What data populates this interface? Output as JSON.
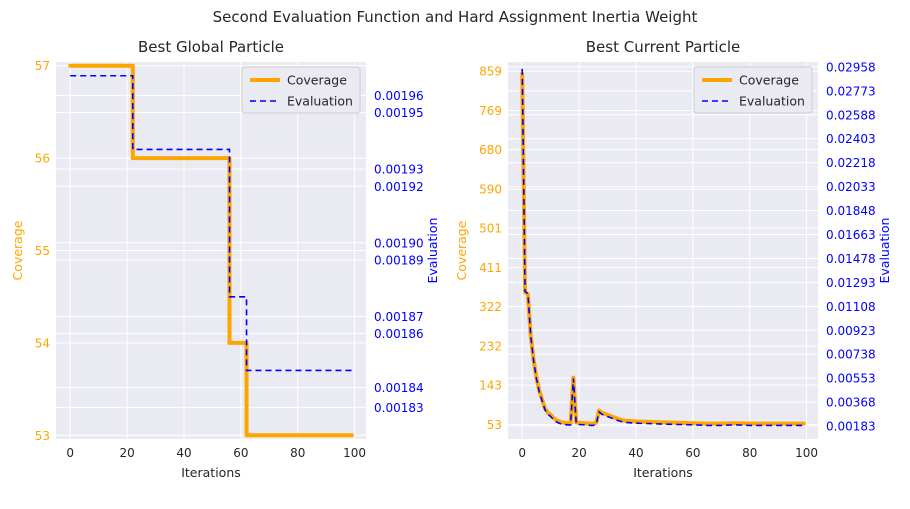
{
  "figure": {
    "title": "Second Evaluation Function and Hard Assignment Inertia Weight",
    "colors": {
      "coverage": "#FFA500",
      "evaluation": "#0000FF",
      "panel_bg": "#EAEAF2",
      "grid": "#FFFFFF",
      "text": "#262626"
    }
  },
  "chart_data": [
    {
      "type": "line",
      "title": "Best Global Particle",
      "xlabel": "Iterations",
      "ylabel": "Coverage",
      "y2label": "Evaluation",
      "xlim": [
        -5,
        104
      ],
      "ylim": [
        52.96,
        57.04
      ],
      "y2lim": [
        0.0018211,
        0.0019746
      ],
      "xticks": [
        0,
        20,
        40,
        60,
        80,
        100
      ],
      "yticks": [
        57,
        56,
        55,
        54,
        53
      ],
      "y2ticks": [
        "0.00196",
        "0.00195",
        "0.00193",
        "0.00192",
        "0.00190",
        "0.00189",
        "0.00187",
        "0.00186",
        "0.00184",
        "0.00183"
      ],
      "y2tick_values": [
        0.001961,
        0.001954,
        0.001931,
        0.001924,
        0.001901,
        0.001894,
        0.001871,
        0.001864,
        0.001842,
        0.001834
      ],
      "legend": {
        "location": "upper right",
        "entries": [
          "Coverage",
          "Evaluation"
        ]
      },
      "series": [
        {
          "name": "Coverage",
          "axis": "left",
          "step": true,
          "x": [
            0,
            21,
            22,
            54,
            56,
            61,
            62,
            99
          ],
          "y": [
            57,
            57,
            56,
            56,
            54,
            54,
            53,
            53
          ]
        },
        {
          "name": "Evaluation",
          "axis": "right",
          "step": true,
          "x": [
            0,
            21,
            22,
            54,
            56,
            61,
            62,
            99
          ],
          "y": [
            0.001969,
            0.001969,
            0.001939,
            0.001939,
            0.001879,
            0.001879,
            0.001849,
            0.001849
          ]
        }
      ]
    },
    {
      "type": "line",
      "title": "Best Current Particle",
      "xlabel": "Iterations",
      "ylabel": "Coverage",
      "y2label": "Evaluation",
      "xlim": [
        -5,
        104
      ],
      "ylim": [
        20,
        880
      ],
      "y2lim": [
        0.00083,
        0.02996
      ],
      "xticks": [
        0,
        20,
        40,
        60,
        80,
        100
      ],
      "yticks": [
        859,
        769,
        680,
        590,
        501,
        411,
        322,
        232,
        143,
        53
      ],
      "y2ticks": [
        "0.02958",
        "0.02773",
        "0.02588",
        "0.02403",
        "0.02218",
        "0.02033",
        "0.01848",
        "0.01663",
        "0.01478",
        "0.01293",
        "0.01108",
        "0.00923",
        "0.00738",
        "0.00553",
        "0.00368",
        "0.00183"
      ],
      "y2tick_values": [
        0.02958,
        0.02773,
        0.02588,
        0.02403,
        0.02218,
        0.02033,
        0.01848,
        0.01663,
        0.01478,
        0.01293,
        0.01108,
        0.00923,
        0.00738,
        0.00553,
        0.00368,
        0.00183
      ],
      "legend": {
        "location": "upper right",
        "entries": [
          "Coverage",
          "Evaluation"
        ]
      },
      "series": [
        {
          "name": "Coverage",
          "axis": "left",
          "x": [
            0,
            1,
            2,
            3,
            4,
            5,
            6,
            7,
            8,
            9,
            10,
            11,
            12,
            13,
            14,
            15,
            16,
            17,
            18,
            19,
            20,
            22,
            24,
            25,
            26,
            27,
            28,
            30,
            32,
            34,
            36,
            40,
            45,
            50,
            55,
            60,
            65,
            70,
            75,
            80,
            85,
            90,
            95,
            99
          ],
          "y": [
            853,
            355,
            350,
            255,
            200,
            160,
            130,
            110,
            90,
            80,
            75,
            68,
            63,
            60,
            58,
            57,
            56,
            56,
            160,
            58,
            57,
            56,
            55,
            55,
            57,
            85,
            80,
            75,
            70,
            65,
            62,
            60,
            59,
            58,
            57,
            56,
            55,
            55,
            56,
            55,
            55,
            55,
            55,
            55
          ]
        },
        {
          "name": "Evaluation",
          "axis": "right",
          "x": [
            0,
            1,
            2,
            3,
            4,
            5,
            6,
            7,
            8,
            9,
            10,
            11,
            12,
            13,
            14,
            15,
            16,
            17,
            18,
            19,
            20,
            22,
            24,
            25,
            26,
            27,
            28,
            30,
            32,
            34,
            36,
            40,
            45,
            50,
            55,
            60,
            65,
            70,
            75,
            80,
            85,
            90,
            95,
            99
          ],
          "y": [
            0.02943,
            0.01223,
            0.01206,
            0.00878,
            0.00688,
            0.0055,
            0.00447,
            0.00378,
            0.00309,
            0.00274,
            0.00257,
            0.00233,
            0.00216,
            0.00205,
            0.00198,
            0.00195,
            0.00192,
            0.00192,
            0.0055,
            0.00198,
            0.00195,
            0.00192,
            0.00188,
            0.00188,
            0.00195,
            0.00292,
            0.00274,
            0.00257,
            0.0024,
            0.00223,
            0.00212,
            0.00205,
            0.00202,
            0.00198,
            0.00195,
            0.00192,
            0.00188,
            0.00188,
            0.00192,
            0.00188,
            0.00188,
            0.00188,
            0.00188,
            0.00188
          ]
        }
      ]
    }
  ]
}
